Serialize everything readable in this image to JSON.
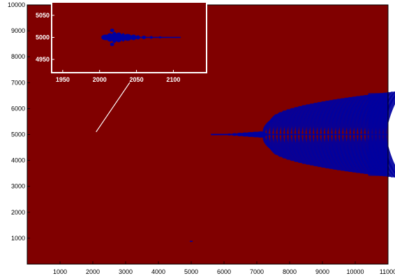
{
  "chart_data": [
    {
      "type": "heatmap",
      "title": "",
      "xlabel": "",
      "ylabel": "",
      "xlim": [
        0,
        11000
      ],
      "ylim": [
        0,
        10000
      ],
      "xticks": [
        "1000",
        "2000",
        "3000",
        "4000",
        "5000",
        "6000",
        "7000",
        "8000",
        "9000",
        "10000",
        "11000"
      ],
      "yticks": [
        "1000",
        "2000",
        "3000",
        "4000",
        "5000",
        "6000",
        "7000",
        "8000",
        "9000",
        "10000"
      ],
      "grid": false,
      "colors": {
        "background": "#800000",
        "structure": "#0000a0"
      },
      "structure": {
        "spine": {
          "x": [
            5600,
            11000
          ],
          "y": 5000
        },
        "fringe_start_x": 7200,
        "fringe_end_x": 11000,
        "half_height": 1700,
        "bands": 34
      },
      "pointer": {
        "from": [
          2100,
          5100
        ],
        "to_inset": true
      }
    },
    {
      "type": "heatmap",
      "title": "",
      "inset": true,
      "xlim": [
        1935,
        2145
      ],
      "ylim": [
        4920,
        5080
      ],
      "xticks": [
        "1950",
        "2000",
        "2050",
        "2100"
      ],
      "yticks": [
        "4950",
        "5000",
        "5050"
      ],
      "colors": {
        "background": "#800000",
        "structure": "#0000a0",
        "frame": "#ffffff"
      },
      "structure": {
        "x": [
          2003,
          2110
        ],
        "y": 5000
      }
    }
  ]
}
